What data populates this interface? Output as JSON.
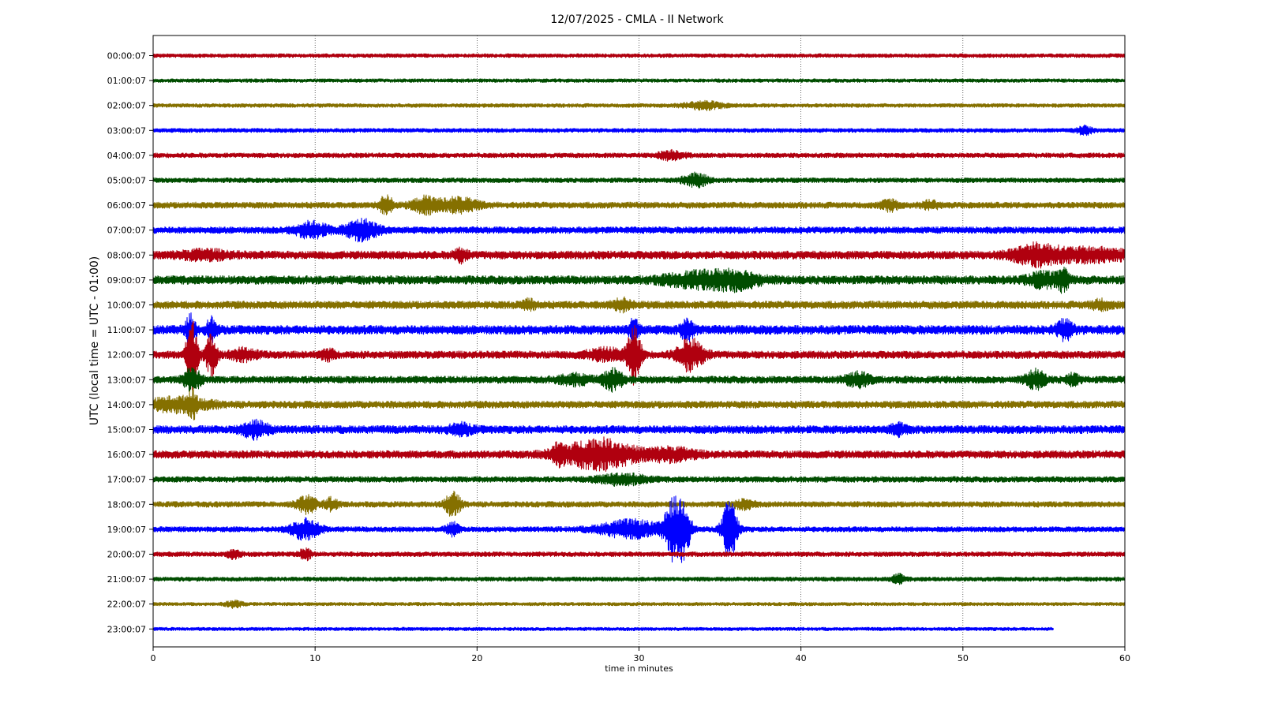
{
  "chart_data": {
    "type": "line",
    "title": "12/07/2025 - CMLA - II Network",
    "xlabel": "time in minutes",
    "ylabel": "UTC (local time = UTC - 01:00)",
    "xlim": [
      0,
      60
    ],
    "x_ticks": [
      "0",
      "10",
      "20",
      "30",
      "40",
      "50",
      "60"
    ],
    "grid": "vertical dotted",
    "colors": [
      "#b0000f",
      "#004d00",
      "#857000",
      "#0000ff"
    ],
    "traces": [
      {
        "label": "00:00:07",
        "end": 60,
        "noise": 0.16,
        "events": []
      },
      {
        "label": "01:00:07",
        "end": 60,
        "noise": 0.15,
        "events": []
      },
      {
        "label": "02:00:07",
        "end": 60,
        "noise": 0.16,
        "events": [
          [
            34,
            0.3,
            1.2
          ]
        ]
      },
      {
        "label": "03:00:07",
        "end": 60,
        "noise": 0.17,
        "events": [
          [
            57.5,
            0.3,
            0.5
          ]
        ]
      },
      {
        "label": "04:00:07",
        "end": 60,
        "noise": 0.2,
        "events": [
          [
            32,
            0.35,
            0.8
          ]
        ]
      },
      {
        "label": "05:00:07",
        "end": 60,
        "noise": 0.2,
        "events": [
          [
            33.5,
            0.5,
            0.8
          ]
        ]
      },
      {
        "label": "06:00:07",
        "end": 60,
        "noise": 0.26,
        "events": [
          [
            14.4,
            0.8,
            0.4
          ],
          [
            16.8,
            0.6,
            0.8
          ],
          [
            18.8,
            0.55,
            1.2
          ],
          [
            45.5,
            0.4,
            0.5
          ],
          [
            48,
            0.3,
            0.5
          ]
        ]
      },
      {
        "label": "07:00:07",
        "end": 60,
        "noise": 0.28,
        "events": [
          [
            9.8,
            0.6,
            1.0
          ],
          [
            12.9,
            0.8,
            1.0
          ]
        ]
      },
      {
        "label": "08:00:07",
        "end": 60,
        "noise": 0.34,
        "events": [
          [
            3.2,
            0.3,
            1.5
          ],
          [
            19,
            0.5,
            0.4
          ],
          [
            54.5,
            0.75,
            1.5
          ],
          [
            58,
            0.45,
            2.5
          ]
        ]
      },
      {
        "label": "09:00:07",
        "end": 60,
        "noise": 0.36,
        "events": [
          [
            33.5,
            0.5,
            2.0
          ],
          [
            36,
            0.6,
            1.5
          ],
          [
            55,
            0.5,
            1.0
          ],
          [
            56.2,
            0.9,
            0.3
          ]
        ]
      },
      {
        "label": "10:00:07",
        "end": 60,
        "noise": 0.32,
        "events": [
          [
            23.2,
            0.4,
            0.4
          ],
          [
            29,
            0.4,
            0.6
          ],
          [
            58.5,
            0.3,
            0.6
          ]
        ]
      },
      {
        "label": "11:00:07",
        "end": 60,
        "noise": 0.38,
        "events": [
          [
            2.3,
            1.1,
            0.3
          ],
          [
            3.6,
            0.9,
            0.3
          ],
          [
            29.7,
            0.9,
            0.3
          ],
          [
            33,
            0.8,
            0.4
          ],
          [
            56.3,
            0.75,
            0.5
          ]
        ]
      },
      {
        "label": "12:00:07",
        "end": 60,
        "noise": 0.32,
        "events": [
          [
            2.4,
            2.8,
            0.35
          ],
          [
            3.6,
            1.6,
            0.35
          ],
          [
            29.7,
            2.3,
            0.4
          ],
          [
            33.2,
            1.3,
            0.8
          ],
          [
            5.6,
            0.4,
            0.8
          ],
          [
            28,
            0.4,
            1.2
          ],
          [
            10.8,
            0.4,
            0.4
          ]
        ]
      },
      {
        "label": "13:00:07",
        "end": 60,
        "noise": 0.3,
        "events": [
          [
            2.4,
            1.0,
            0.5
          ],
          [
            28.4,
            0.8,
            0.6
          ],
          [
            26,
            0.35,
            1.0
          ],
          [
            43.5,
            0.5,
            0.8
          ],
          [
            54.5,
            0.7,
            0.6
          ],
          [
            56.8,
            0.4,
            0.4
          ]
        ]
      },
      {
        "label": "14:00:07",
        "end": 60,
        "noise": 0.3,
        "events": [
          [
            1.5,
            0.5,
            2.0
          ],
          [
            2.4,
            0.8,
            0.3
          ]
        ]
      },
      {
        "label": "15:00:07",
        "end": 60,
        "noise": 0.34,
        "events": [
          [
            6.3,
            0.6,
            0.8
          ],
          [
            19,
            0.35,
            0.8
          ],
          [
            46,
            0.35,
            0.5
          ]
        ]
      },
      {
        "label": "16:00:07",
        "end": 60,
        "noise": 0.32,
        "events": [
          [
            27.5,
            1.2,
            2.2
          ],
          [
            25,
            0.55,
            0.4
          ],
          [
            32,
            0.45,
            1.5
          ]
        ]
      },
      {
        "label": "17:00:07",
        "end": 60,
        "noise": 0.24,
        "events": [
          [
            29,
            0.4,
            1.5
          ]
        ]
      },
      {
        "label": "18:00:07",
        "end": 60,
        "noise": 0.24,
        "events": [
          [
            9.5,
            0.65,
            0.6
          ],
          [
            11,
            0.45,
            0.4
          ],
          [
            18.5,
            0.9,
            0.5
          ],
          [
            36.5,
            0.35,
            0.6
          ]
        ]
      },
      {
        "label": "19:00:07",
        "end": 60,
        "noise": 0.22,
        "events": [
          [
            9.4,
            0.8,
            0.9
          ],
          [
            18.5,
            0.5,
            0.4
          ],
          [
            29.5,
            0.7,
            2.0
          ],
          [
            32.1,
            2.4,
            0.5
          ],
          [
            32.8,
            2.2,
            0.4
          ],
          [
            35.6,
            2.6,
            0.45
          ]
        ]
      },
      {
        "label": "20:00:07",
        "end": 60,
        "noise": 0.2,
        "events": [
          [
            9.4,
            0.4,
            0.4
          ],
          [
            5,
            0.3,
            0.4
          ]
        ]
      },
      {
        "label": "21:00:07",
        "end": 60,
        "noise": 0.18,
        "events": [
          [
            46,
            0.35,
            0.4
          ]
        ]
      },
      {
        "label": "22:00:07",
        "end": 60,
        "noise": 0.14,
        "events": [
          [
            5,
            0.25,
            0.5
          ]
        ]
      },
      {
        "label": "23:00:07",
        "end": 55.6,
        "noise": 0.14,
        "events": []
      }
    ]
  }
}
